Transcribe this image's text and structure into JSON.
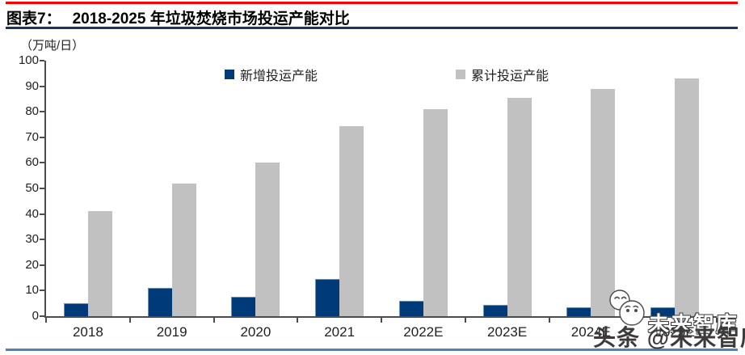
{
  "header": {
    "figure_label": "图表7：",
    "title": "2018-2025 年垃圾焚烧市场投运产能对比"
  },
  "chart_data": {
    "type": "bar",
    "title": "2018-2025 年垃圾焚烧市场投运产能对比",
    "unit": "（万吨/日）",
    "categories": [
      "2018",
      "2019",
      "2020",
      "2021",
      "2022E",
      "2023E",
      "2024E",
      "2025E"
    ],
    "series": [
      {
        "name": "新增投运产能",
        "color": "#003a78",
        "values": [
          5,
          11,
          7.5,
          14.5,
          6,
          4.5,
          3.5,
          3.5
        ]
      },
      {
        "name": "累计投运产能",
        "color": "#c1c1c1",
        "values": [
          41,
          52,
          60,
          74.5,
          81,
          85.5,
          89,
          93
        ]
      }
    ],
    "ylim": [
      0,
      100
    ],
    "ytick_step": 10,
    "grid": false,
    "legend_position": "top"
  },
  "watermark": {
    "brand": "未来智库",
    "credit": "头条 @未来智库"
  },
  "colors": {
    "top_rule": "#fe0000",
    "title_rule": "#17375e",
    "bottom_rule": "#4f81bd",
    "axis": "#4d4d4d",
    "bar_new": "#003a78",
    "bar_cumulative": "#c1c1c1"
  }
}
